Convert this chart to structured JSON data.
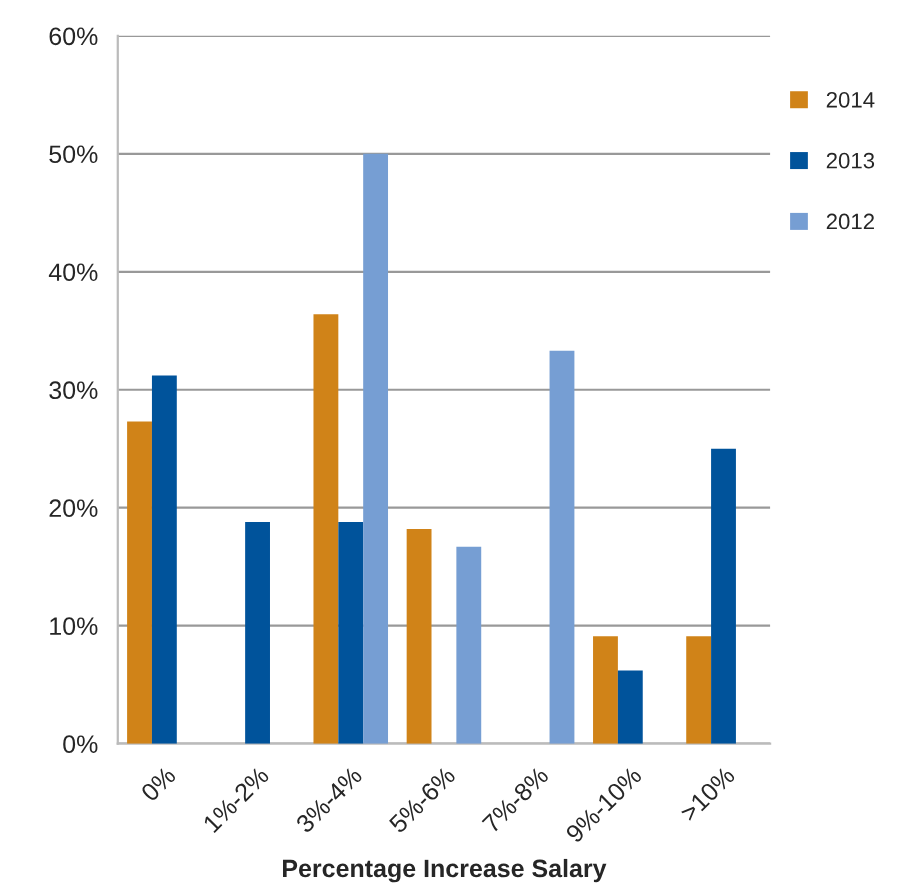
{
  "chart_data": {
    "type": "bar",
    "xlabel": "Percentage Increase Salary",
    "categories": [
      "0%",
      "1%-2%",
      "3%-4%",
      "5%-6%",
      "7%-8%",
      "9%-10%",
      ">10%"
    ],
    "series": [
      {
        "name": "2014",
        "color": "#d08318",
        "values": [
          27.3,
          null,
          36.4,
          18.2,
          null,
          9.1,
          9.1
        ]
      },
      {
        "name": "2013",
        "color": "#00539b",
        "values": [
          31.2,
          18.8,
          18.8,
          null,
          null,
          6.2,
          25.0
        ]
      },
      {
        "name": "2012",
        "color": "#769ed3",
        "values": [
          null,
          null,
          50.0,
          16.7,
          33.3,
          null,
          null
        ]
      }
    ],
    "ylim": [
      0,
      60
    ],
    "yticks": [
      {
        "value": 0,
        "label": "0%"
      },
      {
        "value": 10,
        "label": "10%"
      },
      {
        "value": 20,
        "label": "20%"
      },
      {
        "value": 30,
        "label": "30%"
      },
      {
        "value": 40,
        "label": "40%"
      },
      {
        "value": 50,
        "label": "50%"
      },
      {
        "value": 60,
        "label": "60%"
      }
    ],
    "grid": "y",
    "legend": "right"
  }
}
